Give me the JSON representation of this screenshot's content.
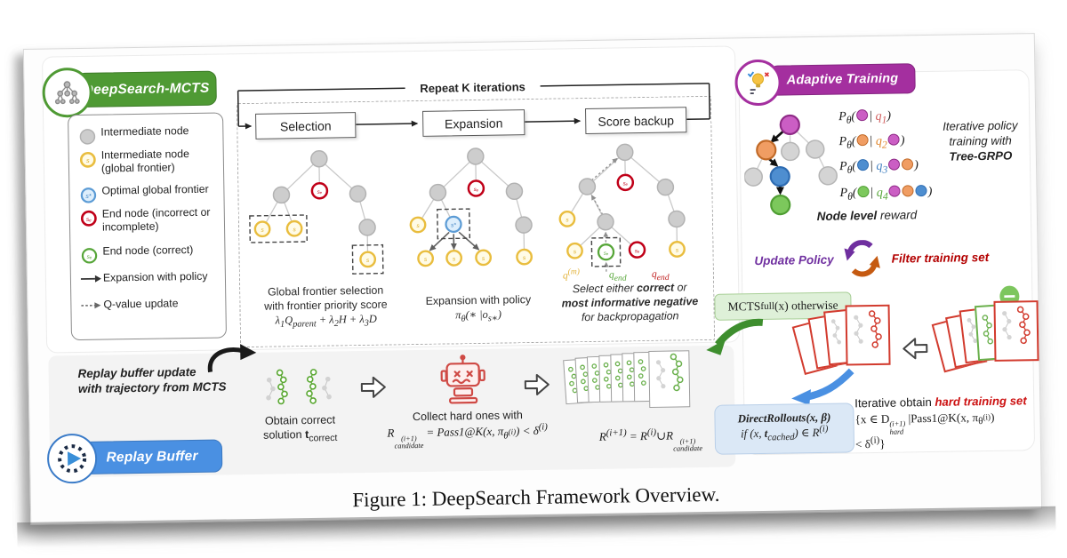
{
  "caption": "Figure 1: DeepSearch Framework Overview.",
  "badges": {
    "deepsearch_mcts": "DeepSearch-MCTS",
    "adaptive_training": "Adaptive Training",
    "replay_buffer": "Replay Buffer"
  },
  "symbols": {
    "s": "s",
    "s_star": "s*",
    "s_e": "sₑ"
  },
  "legend": {
    "items": [
      {
        "symbol": "",
        "label": "Intermediate node"
      },
      {
        "symbol": "s",
        "label": "Intermediate node (global frontier)"
      },
      {
        "symbol": "s*",
        "label": "Optimal global frontier"
      },
      {
        "symbol": "sₑ",
        "label": "End node (incorrect or incomplete)"
      },
      {
        "symbol": "sₑ",
        "label": "End node (correct)"
      },
      {
        "symbol": "",
        "label": "Expansion with policy"
      },
      {
        "symbol": "",
        "label": "Q-value update"
      }
    ]
  },
  "loop": {
    "title": "Repeat K iterations",
    "phases": [
      "Selection",
      "Expansion",
      "Score backup"
    ]
  },
  "mcts": {
    "selection_caption": "Global frontier selection<br>with frontier priority score<br><span class='math'>λ<sub>1</sub>Q<sub>parent</sub> + λ<sub>2</sub>H + λ<sub>3</sub>D</span>",
    "expansion_caption": "Expansion with policy<br><span class='math'>π<sub>θ</sub>(∗ |o<sub>s∗</sub>)</span>",
    "backup_caption": "Select either <b>correct</b> or<br><b><i>most informative negative</i></b><br>for backpropagation",
    "q_labels": {
      "qm": "q<sup>(m)</sup>",
      "q_end_correct": "q<sub>end</sub>",
      "q_end_incorrect": "q<sub>end</sub>"
    }
  },
  "adaptive": {
    "eq1": "P<sub>θ</sub>(<span class='nd c-m'></span>| <span class='q1'>q<sub>1</sub></span>)",
    "eq2": "P<sub>θ</sub>(<span class='nd c-o'></span>| <span class='q2'>q<sub>2</sub></span><span class='nd c-m'></span>)",
    "eq3": "P<sub>θ</sub>(<span class='nd c-b'></span>| <span class='q3'>q<sub>3</sub></span><span class='nd c-m'></span><span class='nd c-o'></span>)",
    "eq4": "P<sub>θ</sub>(<span class='nd c-g'></span>| <span class='q4'>q<sub>4</sub></span><span class='nd c-m'></span><span class='nd c-o'></span><span class='nd c-b'></span>)",
    "note": "Iterative policy<br>training with<br><b>Tree-GRPO</b>",
    "reward": "<b>Node level</b> reward",
    "update_policy": "Update Policy",
    "filter_training": "Filter training set",
    "mcts_full": "MCTS<sub>full</sub>(x) otherwise",
    "direct_rollouts": "<b><i>DirectRollouts(x, β)</i></b><br><i>if (x, <b>t</b><sub>cached</sub>) ∈ R<sup>(i)</sup></i>",
    "hard_set": "<span class='lead'>Iterative obtain <span class='hard'>hard training set</span></span><br>{x ∈ D<span class='ss'><sup>(i+1)</sup><sub>hard</sub></span> |Pass1@K(x, π<sub>θ<sup>(i)</sup></sub>)<br>&lt; δ<sup>(i)</sup>}"
  },
  "replay": {
    "update_text": "Replay buffer update<br>with trajectory from MCTS",
    "obtain": "Obtain correct<br>solution <b>t</b><sub>correct</sub>",
    "collect": "Collect hard ones with",
    "collect_formula": "R<span class='ss'><sup>(i+1)</sup><sub>candidate</sub></span> = Pass1@K(x, π<sub>θ<sup>(i)</sup></sub>) &lt; δ<sup>(i)</sup>",
    "union_formula": "R<sup>(i+1)</sup> = R<sup>(i)</sup>∪R<span class='ss'><sup>(i+1)</sup><sub>candidate</sub></span>"
  }
}
